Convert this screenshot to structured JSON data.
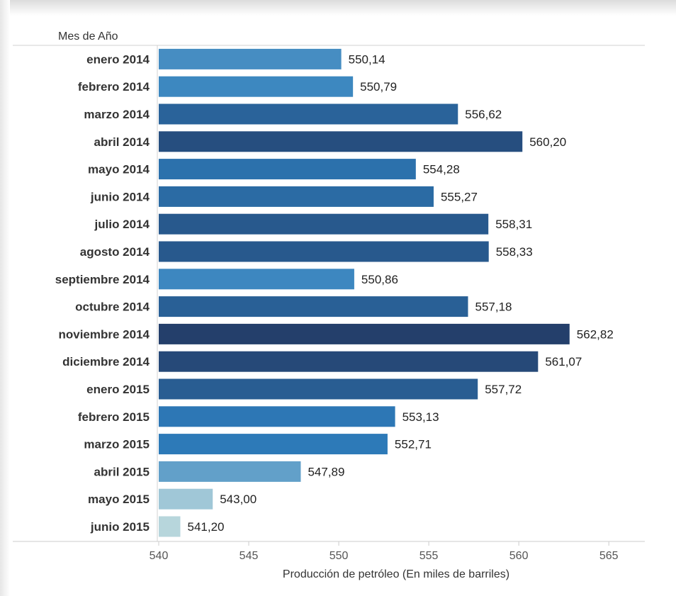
{
  "chart_data": {
    "type": "bar",
    "orientation": "horizontal",
    "row_header": "Mes de Año",
    "xlabel": "Producción de petróleo (En miles de barriles)",
    "xlim": [
      540,
      567
    ],
    "xticks": [
      540,
      545,
      550,
      555,
      560,
      565
    ],
    "categories": [
      "enero 2014",
      "febrero 2014",
      "marzo 2014",
      "abril 2014",
      "mayo 2014",
      "junio 2014",
      "julio 2014",
      "agosto 2014",
      "septiembre 2014",
      "octubre 2014",
      "noviembre 2014",
      "diciembre 2014",
      "enero 2015",
      "febrero 2015",
      "marzo 2015",
      "abril 2015",
      "mayo 2015",
      "junio 2015"
    ],
    "values": [
      550.14,
      550.79,
      556.62,
      560.2,
      554.28,
      555.27,
      558.31,
      558.33,
      550.86,
      557.18,
      562.82,
      561.07,
      557.72,
      553.13,
      552.71,
      547.89,
      543.0,
      541.2
    ],
    "value_labels": [
      "550,14",
      "550,79",
      "556,62",
      "560,20",
      "554,28",
      "555,27",
      "558,31",
      "558,33",
      "550,86",
      "557,18",
      "562,82",
      "561,07",
      "557,72",
      "553,13",
      "552,71",
      "547,89",
      "543,00",
      "541,20"
    ],
    "color_scale": {
      "low": "#b7d6dc",
      "mid": "#2e7ebd",
      "high": "#243f6b",
      "domain": [
        541.2,
        562.82
      ]
    },
    "grid": false,
    "legend": "none"
  }
}
